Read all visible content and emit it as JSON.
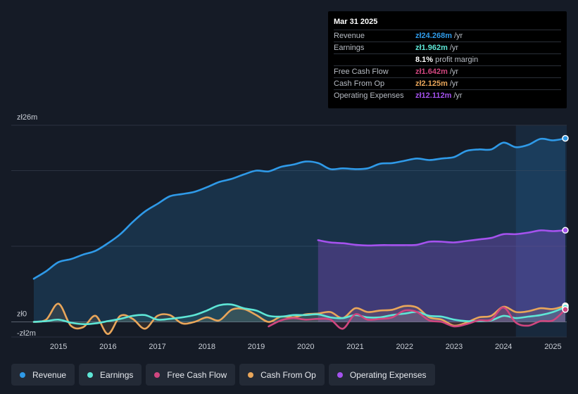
{
  "colors": {
    "revenue": "#2f9ae8",
    "earnings": "#5ee6d6",
    "free_cash_flow": "#d0467f",
    "cash_from_op": "#e9a65a",
    "operating_expenses": "#a552ee"
  },
  "tooltip": {
    "date": "Mar 31 2025",
    "rows": [
      {
        "label": "Revenue",
        "value": "zł24.268m",
        "unit": "/yr",
        "color": "#2f9ae8"
      },
      {
        "label": "Earnings",
        "value": "zł1.962m",
        "unit": "/yr",
        "color": "#5ee6d6"
      },
      {
        "label": "",
        "value": "8.1%",
        "unit": "profit margin",
        "color": "#ffffff"
      },
      {
        "label": "Free Cash Flow",
        "value": "zł1.642m",
        "unit": "/yr",
        "color": "#d0467f"
      },
      {
        "label": "Cash From Op",
        "value": "zł2.125m",
        "unit": "/yr",
        "color": "#e9a65a"
      },
      {
        "label": "Operating Expenses",
        "value": "zł12.112m",
        "unit": "/yr",
        "color": "#a552ee"
      }
    ]
  },
  "legend": [
    {
      "label": "Revenue",
      "color": "#2f9ae8"
    },
    {
      "label": "Earnings",
      "color": "#5ee6d6"
    },
    {
      "label": "Free Cash Flow",
      "color": "#d0467f"
    },
    {
      "label": "Cash From Op",
      "color": "#e9a65a"
    },
    {
      "label": "Operating Expenses",
      "color": "#a552ee"
    }
  ],
  "chart_data": {
    "type": "area",
    "title": "",
    "y_labels": [
      {
        "value": 26,
        "text": "zł26m"
      },
      {
        "value": 0,
        "text": "zł0"
      },
      {
        "value": -2,
        "text": "-zł2m"
      }
    ],
    "ylim": [
      -2,
      26
    ],
    "xlim": [
      2014.5,
      2025.25
    ],
    "x_ticks": [
      "2015",
      "2016",
      "2017",
      "2018",
      "2019",
      "2020",
      "2021",
      "2022",
      "2023",
      "2024",
      "2025"
    ],
    "highlight_start": 2024.25,
    "series": [
      {
        "name": "Revenue",
        "key": "revenue",
        "fill": true,
        "x": [
          2014.5,
          2014.75,
          2015.0,
          2015.25,
          2015.5,
          2015.75,
          2016.0,
          2016.25,
          2016.5,
          2016.75,
          2017.0,
          2017.25,
          2017.5,
          2017.75,
          2018.0,
          2018.25,
          2018.5,
          2018.75,
          2019.0,
          2019.25,
          2019.5,
          2019.75,
          2020.0,
          2020.25,
          2020.5,
          2020.75,
          2021.0,
          2021.25,
          2021.5,
          2021.75,
          2022.0,
          2022.25,
          2022.5,
          2022.75,
          2023.0,
          2023.25,
          2023.5,
          2023.75,
          2024.0,
          2024.25,
          2024.5,
          2024.75,
          2025.0,
          2025.25
        ],
        "values": [
          5.7,
          6.7,
          7.9,
          8.3,
          8.9,
          9.4,
          10.4,
          11.6,
          13.2,
          14.6,
          15.6,
          16.6,
          16.9,
          17.2,
          17.8,
          18.5,
          18.9,
          19.5,
          20.0,
          19.9,
          20.5,
          20.8,
          21.2,
          21.0,
          20.2,
          20.3,
          20.2,
          20.3,
          20.9,
          21.0,
          21.3,
          21.6,
          21.4,
          21.6,
          21.8,
          22.6,
          22.8,
          22.8,
          23.7,
          23.1,
          23.4,
          24.2,
          24.0,
          24.27
        ]
      },
      {
        "name": "Operating Expenses",
        "key": "operating_expenses",
        "fill": true,
        "x": [
          2020.25,
          2020.5,
          2020.75,
          2021.0,
          2021.25,
          2021.5,
          2021.75,
          2022.0,
          2022.25,
          2022.5,
          2022.75,
          2023.0,
          2023.25,
          2023.5,
          2023.75,
          2024.0,
          2024.25,
          2024.5,
          2024.75,
          2025.0,
          2025.25
        ],
        "values": [
          10.8,
          10.5,
          10.4,
          10.2,
          10.1,
          10.15,
          10.15,
          10.15,
          10.2,
          10.6,
          10.6,
          10.5,
          10.7,
          10.9,
          11.1,
          11.6,
          11.6,
          11.8,
          12.1,
          12.0,
          12.11
        ]
      },
      {
        "name": "Cash From Op",
        "key": "cash_from_op",
        "fill": false,
        "x": [
          2014.5,
          2014.75,
          2015.0,
          2015.25,
          2015.5,
          2015.75,
          2016.0,
          2016.25,
          2016.5,
          2016.75,
          2017.0,
          2017.25,
          2017.5,
          2017.75,
          2018.0,
          2018.25,
          2018.5,
          2018.75,
          2019.0,
          2019.25,
          2019.5,
          2019.75,
          2020.0,
          2020.25,
          2020.5,
          2020.75,
          2021.0,
          2021.25,
          2021.5,
          2021.75,
          2022.0,
          2022.25,
          2022.5,
          2022.75,
          2023.0,
          2023.25,
          2023.5,
          2023.75,
          2024.0,
          2024.25,
          2024.5,
          2024.75,
          2025.0,
          2025.25
        ],
        "values": [
          0.0,
          0.3,
          2.4,
          -0.5,
          -0.7,
          0.8,
          -1.6,
          0.8,
          0.4,
          -0.9,
          0.8,
          0.9,
          -0.2,
          0.0,
          0.6,
          0.2,
          1.6,
          1.7,
          0.9,
          0.0,
          0.7,
          0.6,
          1.0,
          1.1,
          1.3,
          0.5,
          1.8,
          1.3,
          1.5,
          1.6,
          2.1,
          1.9,
          0.6,
          0.3,
          -0.5,
          -0.1,
          0.6,
          0.8,
          2.0,
          1.3,
          1.4,
          1.8,
          1.7,
          2.13
        ]
      },
      {
        "name": "Earnings",
        "key": "earnings",
        "fill": false,
        "x": [
          2014.5,
          2014.75,
          2015.0,
          2015.25,
          2015.5,
          2015.75,
          2016.0,
          2016.25,
          2016.5,
          2016.75,
          2017.0,
          2017.25,
          2017.5,
          2017.75,
          2018.0,
          2018.25,
          2018.5,
          2018.75,
          2019.0,
          2019.25,
          2019.5,
          2019.75,
          2020.0,
          2020.25,
          2020.5,
          2020.75,
          2021.0,
          2021.25,
          2021.5,
          2021.75,
          2022.0,
          2022.25,
          2022.5,
          2022.75,
          2023.0,
          2023.25,
          2023.5,
          2023.75,
          2024.0,
          2024.25,
          2024.5,
          2024.75,
          2025.0,
          2025.25
        ],
        "values": [
          0.0,
          0.1,
          0.3,
          -0.1,
          -0.3,
          -0.2,
          0.1,
          0.4,
          0.8,
          0.9,
          0.3,
          0.4,
          0.6,
          0.9,
          1.5,
          2.2,
          2.3,
          1.8,
          1.5,
          0.8,
          0.7,
          0.9,
          0.9,
          1.0,
          0.6,
          0.5,
          0.9,
          0.6,
          0.6,
          0.9,
          1.1,
          1.3,
          0.8,
          0.7,
          0.3,
          0.1,
          0.1,
          0.2,
          0.8,
          0.5,
          0.7,
          0.9,
          1.3,
          1.96
        ]
      },
      {
        "name": "Free Cash Flow",
        "key": "free_cash_flow",
        "fill": false,
        "x": [
          2019.25,
          2019.5,
          2019.75,
          2020.0,
          2020.25,
          2020.5,
          2020.75,
          2021.0,
          2021.25,
          2021.5,
          2021.75,
          2022.0,
          2022.25,
          2022.5,
          2022.75,
          2023.0,
          2023.25,
          2023.5,
          2023.75,
          2024.0,
          2024.25,
          2024.5,
          2024.75,
          2025.0,
          2025.25
        ],
        "values": [
          -0.6,
          0.2,
          0.5,
          0.3,
          0.4,
          0.3,
          -0.9,
          1.0,
          0.3,
          0.4,
          0.6,
          1.5,
          1.3,
          0.2,
          0.0,
          -0.6,
          -0.3,
          0.2,
          0.3,
          1.9,
          -0.1,
          -0.5,
          0.1,
          0.2,
          1.64
        ]
      }
    ]
  }
}
